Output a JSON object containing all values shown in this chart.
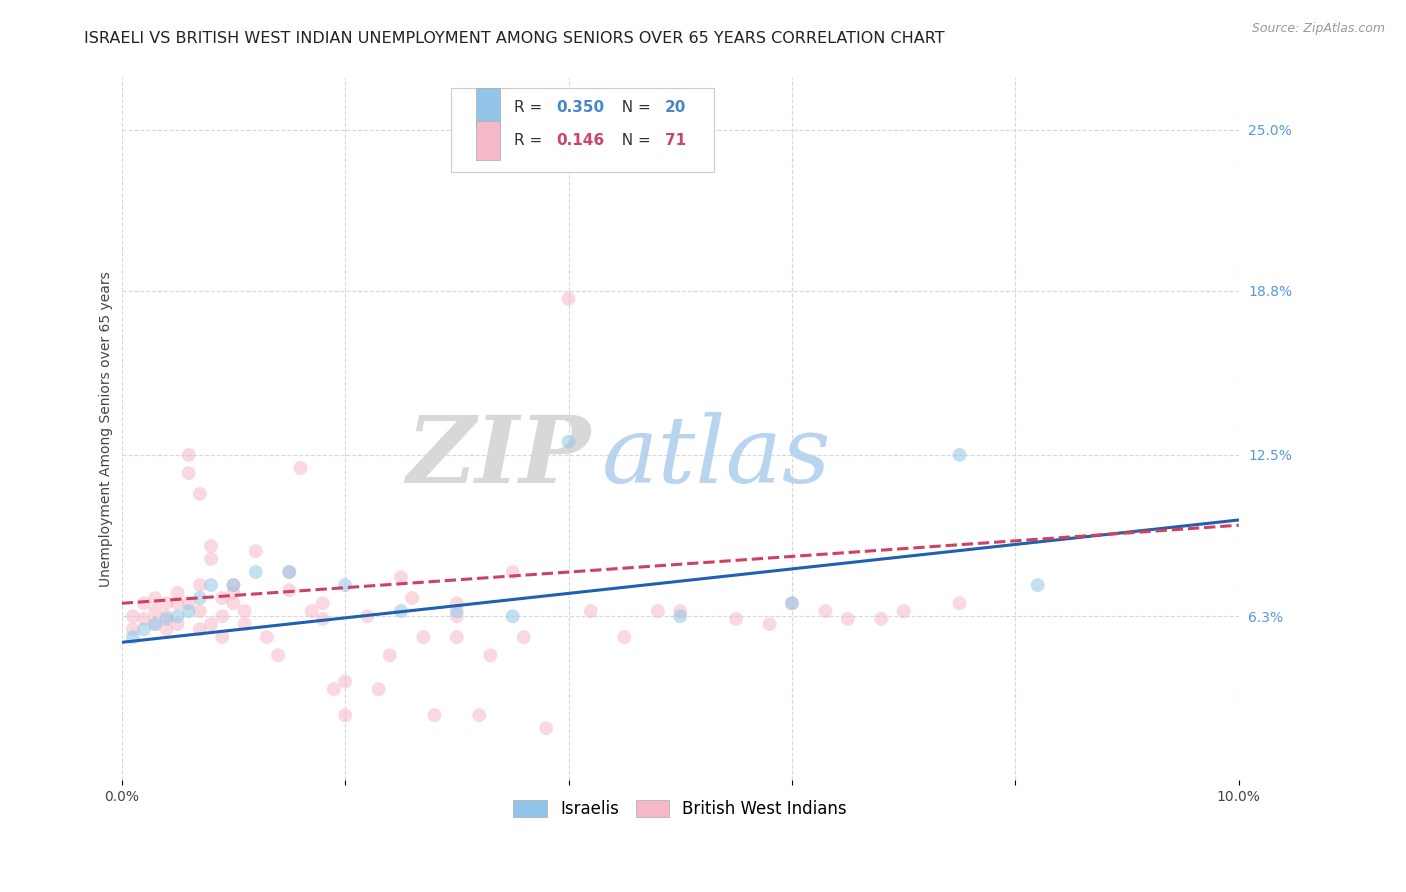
{
  "title": "ISRAELI VS BRITISH WEST INDIAN UNEMPLOYMENT AMONG SENIORS OVER 65 YEARS CORRELATION CHART",
  "source": "Source: ZipAtlas.com",
  "ylabel": "Unemployment Among Seniors over 65 years",
  "xlim": [
    0.0,
    0.1
  ],
  "ylim": [
    0.0,
    0.27
  ],
  "ytick_labels_right": [
    "6.3%",
    "12.5%",
    "18.8%",
    "25.0%"
  ],
  "ytick_values_right": [
    0.063,
    0.125,
    0.188,
    0.25
  ],
  "watermark_zip": "ZIP",
  "watermark_atlas": "atlas",
  "israeli_R": 0.35,
  "israeli_N": 20,
  "bwi_R": 0.146,
  "bwi_N": 71,
  "israeli_color": "#92c5e8",
  "bwi_color": "#f5b8c8",
  "israeli_line_color": "#2060b0",
  "bwi_line_color": "#d04060",
  "background_color": "#ffffff",
  "grid_color": "#d8d8d8",
  "israeli_x": [
    0.001,
    0.002,
    0.003,
    0.004,
    0.005,
    0.006,
    0.007,
    0.008,
    0.01,
    0.012,
    0.015,
    0.02,
    0.025,
    0.03,
    0.035,
    0.04,
    0.05,
    0.06,
    0.075,
    0.082
  ],
  "israeli_y": [
    0.055,
    0.058,
    0.06,
    0.062,
    0.063,
    0.065,
    0.07,
    0.075,
    0.075,
    0.08,
    0.08,
    0.075,
    0.065,
    0.065,
    0.063,
    0.13,
    0.063,
    0.068,
    0.125,
    0.075
  ],
  "bwi_x": [
    0.001,
    0.001,
    0.002,
    0.002,
    0.003,
    0.003,
    0.003,
    0.004,
    0.004,
    0.004,
    0.005,
    0.005,
    0.005,
    0.006,
    0.006,
    0.006,
    0.007,
    0.007,
    0.007,
    0.007,
    0.008,
    0.008,
    0.008,
    0.009,
    0.009,
    0.009,
    0.01,
    0.01,
    0.01,
    0.011,
    0.011,
    0.012,
    0.013,
    0.014,
    0.015,
    0.015,
    0.016,
    0.017,
    0.018,
    0.018,
    0.019,
    0.02,
    0.02,
    0.022,
    0.023,
    0.024,
    0.025,
    0.026,
    0.027,
    0.028,
    0.03,
    0.03,
    0.03,
    0.032,
    0.033,
    0.035,
    0.036,
    0.038,
    0.04,
    0.042,
    0.045,
    0.048,
    0.05,
    0.055,
    0.058,
    0.06,
    0.063,
    0.065,
    0.068,
    0.07,
    0.075
  ],
  "bwi_y": [
    0.063,
    0.058,
    0.068,
    0.062,
    0.07,
    0.065,
    0.06,
    0.068,
    0.063,
    0.058,
    0.072,
    0.068,
    0.06,
    0.125,
    0.118,
    0.068,
    0.11,
    0.075,
    0.065,
    0.058,
    0.09,
    0.085,
    0.06,
    0.07,
    0.063,
    0.055,
    0.068,
    0.075,
    0.072,
    0.065,
    0.06,
    0.088,
    0.055,
    0.048,
    0.08,
    0.073,
    0.12,
    0.065,
    0.068,
    0.062,
    0.035,
    0.025,
    0.038,
    0.063,
    0.035,
    0.048,
    0.078,
    0.07,
    0.055,
    0.025,
    0.068,
    0.063,
    0.055,
    0.025,
    0.048,
    0.08,
    0.055,
    0.02,
    0.185,
    0.065,
    0.055,
    0.065,
    0.065,
    0.062,
    0.06,
    0.068,
    0.065,
    0.062,
    0.062,
    0.065,
    0.068
  ],
  "title_fontsize": 11.5,
  "axis_label_fontsize": 10,
  "tick_fontsize": 10,
  "marker_size": 100,
  "marker_alpha": 0.55,
  "line_width": 2.2
}
